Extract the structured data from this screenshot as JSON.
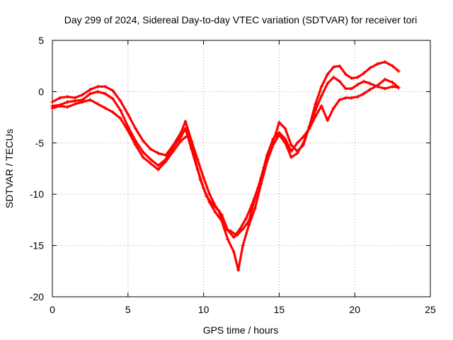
{
  "chart_data": {
    "type": "scatter",
    "title": "Day 299 of 2024, Sidereal Day-to-day VTEC variation (SDTVAR) for receiver tori",
    "xlabel": "GPS time / hours",
    "ylabel": "SDTVAR / TECUs",
    "xlim": [
      0,
      25
    ],
    "ylim": [
      -20,
      5
    ],
    "xticks": [
      "0",
      "5",
      "10",
      "15",
      "20",
      "25"
    ],
    "yticks": [
      "5",
      "0",
      "-5",
      "-10",
      "-15",
      "-20"
    ],
    "grid": true,
    "marker": "+",
    "color": "#ff0000",
    "series": [
      {
        "x": [
          0.0,
          0.5,
          1.0,
          1.5,
          2.0,
          2.5,
          3.0,
          3.5,
          4.0,
          4.5,
          5.0,
          5.5,
          6.0,
          6.5,
          7.0,
          7.5,
          8.0,
          8.5,
          8.8,
          9.2,
          9.6,
          10.0,
          10.4,
          10.8,
          11.2,
          11.6,
          12.0,
          12.4,
          12.8,
          13.2,
          13.6,
          14.0,
          14.4,
          14.8,
          15.0,
          15.4,
          15.8,
          16.2,
          16.6,
          17.0,
          17.4,
          17.8,
          18.2,
          18.6,
          19.0,
          19.4,
          19.8,
          20.2,
          20.6,
          21.0,
          21.5,
          22.0,
          22.5,
          22.9
        ],
        "y": [
          -1.0,
          -0.6,
          -0.5,
          -0.6,
          -0.3,
          0.2,
          0.5,
          0.5,
          0.1,
          -0.9,
          -2.2,
          -3.6,
          -4.8,
          -5.6,
          -6.0,
          -6.2,
          -5.2,
          -4.0,
          -2.9,
          -4.8,
          -6.6,
          -8.4,
          -10.0,
          -11.2,
          -12.0,
          -13.5,
          -14.2,
          -13.4,
          -12.4,
          -11.0,
          -9.4,
          -7.4,
          -5.6,
          -4.0,
          -3.0,
          -3.6,
          -5.2,
          -5.8,
          -5.2,
          -3.4,
          -1.2,
          0.5,
          1.7,
          2.4,
          2.5,
          1.7,
          1.3,
          1.4,
          1.8,
          2.3,
          2.7,
          2.9,
          2.5,
          2.0
        ]
      },
      {
        "x": [
          0.0,
          0.5,
          1.0,
          1.5,
          2.0,
          2.5,
          3.0,
          3.5,
          4.0,
          4.5,
          5.0,
          5.5,
          6.0,
          6.5,
          7.0,
          7.5,
          8.0,
          8.5,
          8.8,
          9.2,
          9.6,
          10.0,
          10.4,
          10.8,
          11.2,
          11.6,
          12.0,
          12.3,
          12.6,
          13.0,
          13.4,
          13.8,
          14.2,
          14.6,
          15.0,
          15.4,
          15.8,
          16.2,
          16.6,
          17.0,
          17.4,
          17.8,
          18.2,
          18.6,
          19.0,
          19.4,
          19.8,
          20.2,
          20.6,
          21.0,
          21.5,
          22.0,
          22.5,
          22.9
        ],
        "y": [
          -1.4,
          -1.3,
          -1.0,
          -0.9,
          -0.8,
          -0.2,
          0.0,
          -0.2,
          -0.7,
          -1.8,
          -3.4,
          -4.8,
          -5.9,
          -6.6,
          -7.2,
          -6.6,
          -5.4,
          -4.4,
          -3.6,
          -5.6,
          -7.6,
          -9.4,
          -10.8,
          -11.8,
          -12.6,
          -14.4,
          -15.6,
          -17.4,
          -15.0,
          -13.0,
          -11.4,
          -9.0,
          -6.8,
          -5.2,
          -4.2,
          -5.0,
          -6.4,
          -6.0,
          -5.0,
          -3.4,
          -1.8,
          -0.4,
          0.8,
          1.4,
          1.0,
          0.3,
          0.3,
          0.7,
          1.0,
          0.8,
          0.5,
          0.3,
          0.5,
          0.4
        ]
      },
      {
        "x": [
          0.0,
          0.5,
          1.0,
          1.5,
          2.0,
          2.5,
          3.0,
          3.5,
          4.0,
          4.5,
          5.0,
          5.5,
          6.0,
          6.5,
          7.0,
          7.5,
          8.0,
          8.5,
          9.0,
          9.4,
          9.8,
          10.2,
          10.6,
          11.0,
          11.4,
          11.8,
          12.2,
          12.6,
          13.0,
          13.4,
          13.8,
          14.2,
          14.6,
          15.0,
          15.4,
          15.8,
          16.2,
          16.6,
          17.0,
          17.4,
          17.8,
          18.2,
          18.6,
          19.0,
          19.4,
          19.8,
          20.2,
          20.6,
          21.0,
          21.5,
          22.0,
          22.5,
          22.9
        ],
        "y": [
          -1.6,
          -1.4,
          -1.5,
          -1.2,
          -1.0,
          -0.8,
          -1.2,
          -1.6,
          -2.0,
          -2.6,
          -3.8,
          -5.2,
          -6.4,
          -7.0,
          -7.6,
          -6.8,
          -5.8,
          -4.8,
          -4.2,
          -6.4,
          -8.6,
          -10.2,
          -11.0,
          -11.6,
          -13.4,
          -13.6,
          -14.0,
          -13.4,
          -12.6,
          -10.4,
          -8.4,
          -6.2,
          -4.6,
          -4.0,
          -4.6,
          -5.8,
          -5.0,
          -4.4,
          -3.6,
          -2.4,
          -1.4,
          -2.8,
          -1.6,
          -0.8,
          -0.6,
          -0.6,
          -0.5,
          -0.2,
          0.2,
          0.6,
          1.2,
          0.9,
          0.4
        ]
      }
    ]
  }
}
